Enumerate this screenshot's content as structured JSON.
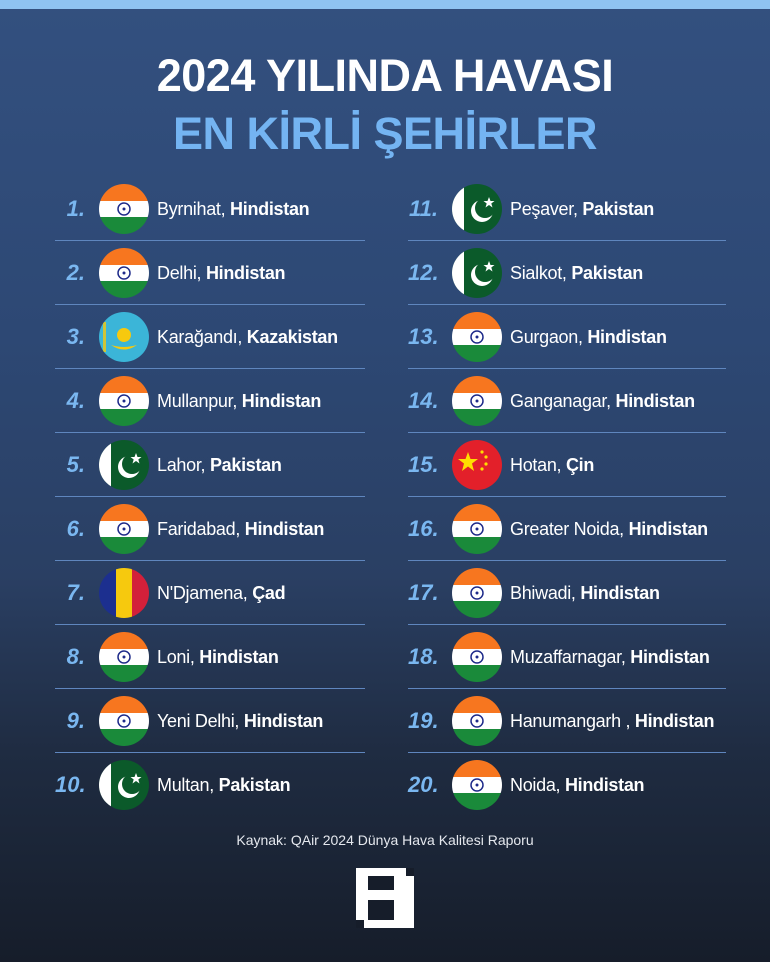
{
  "title_line1": "2024 YILINDA HAVASI",
  "title_line2": "EN KİRLİ ŞEHİRLER",
  "colors": {
    "accent": "#74b4f2",
    "background_top": "#33507f",
    "background_bottom": "#161d2a"
  },
  "cities": [
    {
      "rank": "1.",
      "city": "Byrnihat,",
      "country": "Hindistan",
      "flag": "india"
    },
    {
      "rank": "2.",
      "city": "Delhi,",
      "country": "Hindistan",
      "flag": "india"
    },
    {
      "rank": "3.",
      "city": "Karağandı,",
      "country": "Kazakistan",
      "flag": "kazakhstan"
    },
    {
      "rank": "4.",
      "city": "Mullanpur,",
      "country": "Hindistan",
      "flag": "india"
    },
    {
      "rank": "5.",
      "city": "Lahor,",
      "country": "Pakistan",
      "flag": "pakistan"
    },
    {
      "rank": "6.",
      "city": "Faridabad,",
      "country": "Hindistan",
      "flag": "india"
    },
    {
      "rank": "7.",
      "city": "N'Djamena,",
      "country": "Çad",
      "flag": "chad"
    },
    {
      "rank": "8.",
      "city": "Loni,",
      "country": "Hindistan",
      "flag": "india"
    },
    {
      "rank": "9.",
      "city": "Yeni Delhi,",
      "country": "Hindistan",
      "flag": "india"
    },
    {
      "rank": "10.",
      "city": "Multan,",
      "country": "Pakistan",
      "flag": "pakistan"
    },
    {
      "rank": "11.",
      "city": "Peşaver,",
      "country": "Pakistan",
      "flag": "pakistan"
    },
    {
      "rank": "12.",
      "city": "Sialkot,",
      "country": "Pakistan",
      "flag": "pakistan"
    },
    {
      "rank": "13.",
      "city": "Gurgaon,",
      "country": "Hindistan",
      "flag": "india"
    },
    {
      "rank": "14.",
      "city": "Ganganagar,",
      "country": "Hindistan",
      "flag": "india"
    },
    {
      "rank": "15.",
      "city": "Hotan,",
      "country": "Çin",
      "flag": "china"
    },
    {
      "rank": "16.",
      "city": "Greater Noida,",
      "country": "Hindistan",
      "flag": "india"
    },
    {
      "rank": "17.",
      "city": "Bhiwadi,",
      "country": "Hindistan",
      "flag": "india"
    },
    {
      "rank": "18.",
      "city": "Muzaffarnagar,",
      "country": "Hindistan",
      "flag": "india"
    },
    {
      "rank": "19.",
      "city": "Hanumangarh ,",
      "country": "Hindistan",
      "flag": "india"
    },
    {
      "rank": "20.",
      "city": "Noida,",
      "country": "Hindistan",
      "flag": "india"
    }
  ],
  "source": "Kaynak: QAir 2024 Dünya Hava Kalitesi Raporu",
  "logo_text": "H"
}
